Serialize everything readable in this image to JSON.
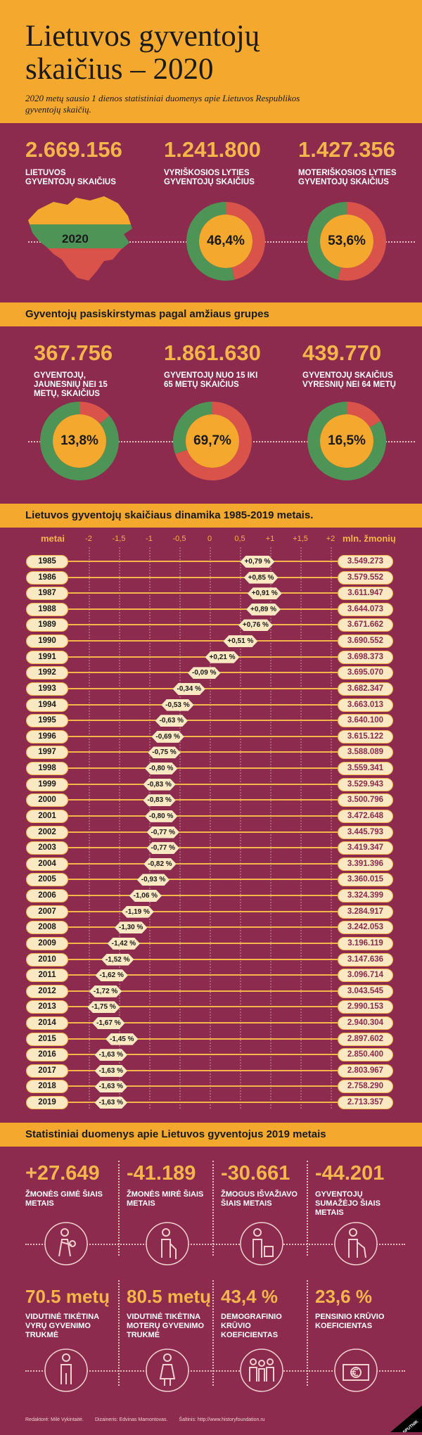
{
  "header": {
    "title_line1": "Lietuvos gyventojų",
    "title_line2": "skaičius – 2020",
    "subtitle": "2020 metų sausio 1 dienos statistiniai duomenys apie Lietuvos Respublikos gyventojų skaičių."
  },
  "top": {
    "items": [
      {
        "number": "2.669.156",
        "label": "LIETUVOS GYVENTOJŲ SKAIČIUS",
        "badge": "2020"
      },
      {
        "number": "1.241.800",
        "label": "VYRIŠKOSIOS LYTIES GYVENTOJŲ SKAIČIUS",
        "percent": "46,4%",
        "share": 46.4
      },
      {
        "number": "1.427.356",
        "label": "MOTERIŠKOSIOS LYTIES GYVENTOJŲ SKAIČIUS",
        "percent": "53,6%",
        "share": 53.6
      }
    ]
  },
  "age": {
    "title": "Gyventojų pasiskirstymas pagal amžiaus grupes",
    "items": [
      {
        "number": "367.756",
        "label": "GYVENTOJŲ, JAUNESNIŲ NEI 15 METŲ, SKAIČIUS",
        "percent": "13,8%",
        "share": 13.8
      },
      {
        "number": "1.861.630",
        "label": "GYVENTOJŲ NUO 15 IKI 65 METŲ SKAIČIUS",
        "percent": "69,7%",
        "share": 69.7
      },
      {
        "number": "439.770",
        "label": "GYVENTOJŲ SKAIČIUS VYRESNIŲ NEI 64 METŲ",
        "percent": "16,5%",
        "share": 16.5
      }
    ]
  },
  "dynamics": {
    "title": "Lietuvos gyventojų skaičiaus dinamika 1985-2019 metais.",
    "left_head": "metai",
    "right_head": "mln. žmonių"
  },
  "chart_data": {
    "type": "table",
    "title": "Lietuvos gyventojų skaičiaus dinamika 1985-2019 metais.",
    "xlabel": "metai",
    "ylabel": "mln. žmonių",
    "xlim": [
      -2,
      2
    ],
    "ticks": [
      {
        "v": -2,
        "t": "-2"
      },
      {
        "v": -1.5,
        "t": "-1,5"
      },
      {
        "v": -1,
        "t": "-1"
      },
      {
        "v": -0.5,
        "t": "-0,5"
      },
      {
        "v": 0,
        "t": "0"
      },
      {
        "v": 0.5,
        "t": "0,5"
      },
      {
        "v": 1,
        "t": "+1"
      },
      {
        "v": 1.5,
        "t": "+1,5"
      },
      {
        "v": 2,
        "t": "+2"
      }
    ],
    "rows": [
      {
        "year": "1985",
        "change": 0.79,
        "change_label": "+0,79 %",
        "population": "3.549.273"
      },
      {
        "year": "1986",
        "change": 0.85,
        "change_label": "+0,85 %",
        "population": "3.579.552"
      },
      {
        "year": "1987",
        "change": 0.91,
        "change_label": "+0,91 %",
        "population": "3.611.947"
      },
      {
        "year": "1988",
        "change": 0.89,
        "change_label": "+0,89 %",
        "population": "3.644.073"
      },
      {
        "year": "1989",
        "change": 0.76,
        "change_label": "+0,76 %",
        "population": "3.671.662"
      },
      {
        "year": "1990",
        "change": 0.51,
        "change_label": "+0,51 %",
        "population": "3.690.552"
      },
      {
        "year": "1991",
        "change": 0.21,
        "change_label": "+0,21 %",
        "population": "3.698.373"
      },
      {
        "year": "1992",
        "change": -0.09,
        "change_label": "-0,09 %",
        "population": "3.695.070"
      },
      {
        "year": "1993",
        "change": -0.34,
        "change_label": "-0,34 %",
        "population": "3.682.347"
      },
      {
        "year": "1994",
        "change": -0.53,
        "change_label": "-0,53 %",
        "population": "3.663.013"
      },
      {
        "year": "1995",
        "change": -0.63,
        "change_label": "-0,63 %",
        "population": "3.640.100"
      },
      {
        "year": "1996",
        "change": -0.69,
        "change_label": "-0,69 %",
        "population": "3.615.122"
      },
      {
        "year": "1997",
        "change": -0.75,
        "change_label": "-0,75 %",
        "population": "3.588.089"
      },
      {
        "year": "1998",
        "change": -0.8,
        "change_label": "-0,80 %",
        "population": "3.559.341"
      },
      {
        "year": "1999",
        "change": -0.83,
        "change_label": "-0,83 %",
        "population": "3.529.943"
      },
      {
        "year": "2000",
        "change": -0.83,
        "change_label": "-0,83 %",
        "population": "3.500.796"
      },
      {
        "year": "2001",
        "change": -0.8,
        "change_label": "-0,80 %",
        "population": "3.472.648"
      },
      {
        "year": "2002",
        "change": -0.77,
        "change_label": "-0,77 %",
        "population": "3.445.793"
      },
      {
        "year": "2003",
        "change": -0.77,
        "change_label": "-0,77 %",
        "population": "3.419.347"
      },
      {
        "year": "2004",
        "change": -0.82,
        "change_label": "-0,82 %",
        "population": "3.391.396"
      },
      {
        "year": "2005",
        "change": -0.93,
        "change_label": "-0,93 %",
        "population": "3.360.015"
      },
      {
        "year": "2006",
        "change": -1.06,
        "change_label": "-1,06 %",
        "population": "3.324.399"
      },
      {
        "year": "2007",
        "change": -1.19,
        "change_label": "-1,19 %",
        "population": "3.284.917"
      },
      {
        "year": "2008",
        "change": -1.3,
        "change_label": "-1,30 %",
        "population": "3.242.053"
      },
      {
        "year": "2009",
        "change": -1.42,
        "change_label": "-1,42 %",
        "population": "3.196.119"
      },
      {
        "year": "2010",
        "change": -1.52,
        "change_label": "-1,52 %",
        "population": "3.147.636"
      },
      {
        "year": "2011",
        "change": -1.62,
        "change_label": "-1,62 %",
        "population": "3.096.714"
      },
      {
        "year": "2012",
        "change": -1.72,
        "change_label": "-1,72 %",
        "population": "3.043.545"
      },
      {
        "year": "2013",
        "change": -1.75,
        "change_label": "-1,75 %",
        "population": "2.990.153"
      },
      {
        "year": "2014",
        "change": -1.67,
        "change_label": "-1,67 %",
        "population": "2.940.304"
      },
      {
        "year": "2015",
        "change": -1.45,
        "change_label": "-1,45 %",
        "population": "2.897.602"
      },
      {
        "year": "2016",
        "change": -1.63,
        "change_label": "-1,63 %",
        "population": "2.850.400"
      },
      {
        "year": "2017",
        "change": -1.63,
        "change_label": "-1,63 %",
        "population": "2.803.967"
      },
      {
        "year": "2018",
        "change": -1.63,
        "change_label": "-1,63 %",
        "population": "2.758.290"
      },
      {
        "year": "2019",
        "change": -1.63,
        "change_label": "-1,63 %",
        "population": "2.713.357"
      }
    ]
  },
  "stats": {
    "title": "Statistiniai duomenys apie Lietuvos gyventojus 2019 metais",
    "row1": [
      {
        "number": "+27.649",
        "label": "ŽMONĖS GIMĖ ŠIAIS METAIS",
        "icon": "mother-baby-icon"
      },
      {
        "number": "-41.189",
        "label": "ŽMONĖS MIRĖ ŠIAIS METAIS",
        "icon": "elderly-person-icon"
      },
      {
        "number": "-30.661",
        "label": "ŽMOGUS IŠVAŽIAVO ŠIAIS METAIS",
        "icon": "traveler-suitcase-icon"
      },
      {
        "number": "-44.201",
        "label": "GYVENTOJŲ SUMAŽĖJO ŠIAIS METAIS",
        "icon": "person-cane-icon"
      }
    ],
    "row2": [
      {
        "number": "70.5 metų",
        "label": "VIDUTINĖ TIKĖTINA VYRŲ GYVENIMO TRUKMĖ",
        "icon": "man-icon"
      },
      {
        "number": "80.5 metų",
        "label": "VIDUTINĖ TIKĖTINA MOTERŲ GYVENIMO TRUKMĖ",
        "icon": "woman-icon"
      },
      {
        "number": "43,4 %",
        "label": "DEMOGRAFINIO KRŪVIO KOEFICIENTAS",
        "icon": "family-group-icon"
      },
      {
        "number": "23,6 %",
        "label": "PENSINIO KRŪVIO KOEFICIENTAS",
        "icon": "euro-wallet-icon"
      }
    ]
  },
  "footer": {
    "editor": "Redaktorė: Milė Vykintaitė.",
    "designer": "Dizaineris: Edvinas Mamontovas.",
    "source": "Šaltinis: http://www.historyfoundation.ru"
  },
  "logo": "SPUTNIK",
  "colors": {
    "orange": "#f4a82d",
    "red": "#d9534a",
    "green": "#4e9456",
    "bg": "#8c2b4d"
  }
}
